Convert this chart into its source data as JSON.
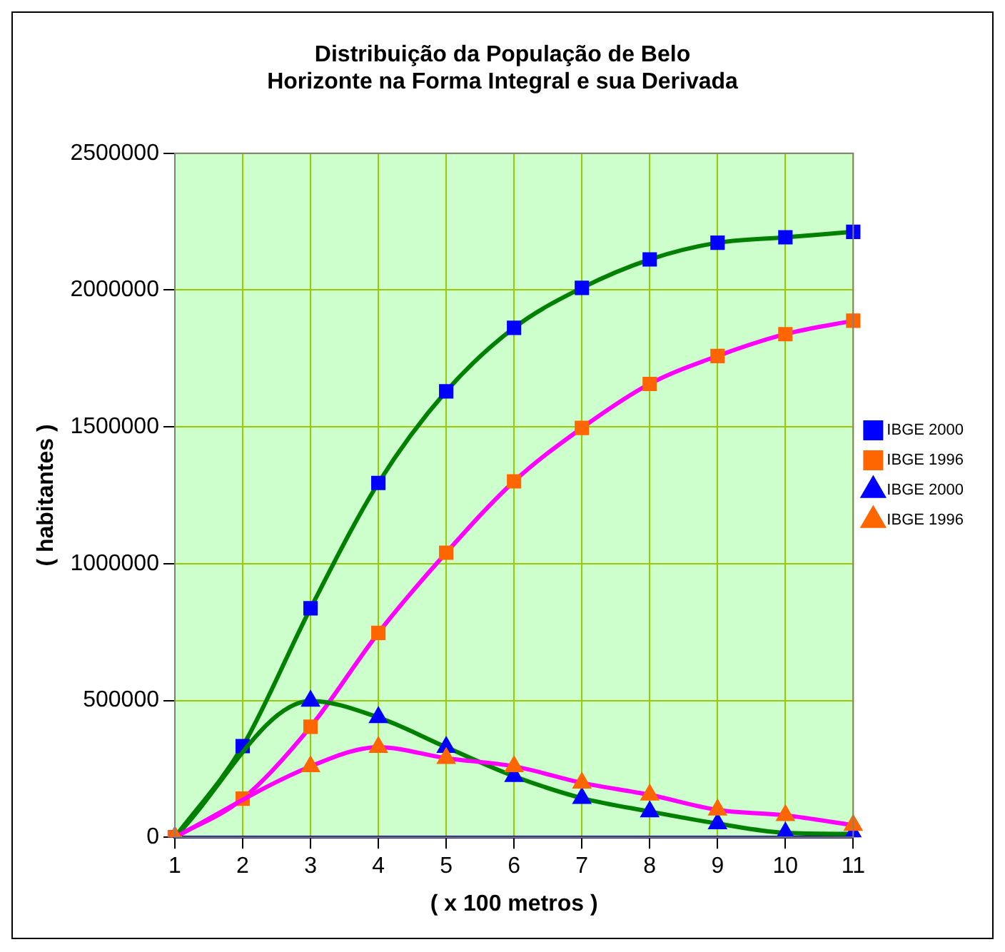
{
  "chart_data": {
    "type": "line",
    "title": "Distribuição da População de Belo Horizonte na Forma Integral e sua Derivada",
    "xlabel": "( x 100 metros )",
    "ylabel": "( habitantes )",
    "categories": [
      "1",
      "2",
      "3",
      "4",
      "5",
      "6",
      "7",
      "8",
      "9",
      "10",
      "11"
    ],
    "series": [
      {
        "name": "IBGE 2000",
        "color": "#008000",
        "marker": "square",
        "colors": [
          "#0000ff",
          "#0000ff",
          "#0000ff",
          "#0000ff",
          "#0000ff",
          "#0000ff",
          "#0000ff",
          "#0000ff",
          "#0000ff",
          "#0000ff",
          "#0000ff"
        ],
        "values": [
          0,
          333000,
          837000,
          1295000,
          1630000,
          1862000,
          2008000,
          2112000,
          2173000,
          2193000,
          2213000
        ]
      },
      {
        "name": "IBGE 1996",
        "color": "#ff00ff",
        "marker": "square",
        "colors": [
          "#ff6600",
          "#ff6600",
          "#ff6600",
          "#ff6600",
          "#ff6600",
          "#ff6600",
          "#ff6600",
          "#ff6600",
          "#ff6600",
          "#ff6600",
          "#ff6600"
        ],
        "values": [
          0,
          141000,
          404000,
          747000,
          1040000,
          1301000,
          1496000,
          1657000,
          1759000,
          1839000,
          1888000
        ]
      },
      {
        "name": "IBGE 2000",
        "color": "#008000",
        "marker": "triangle",
        "colors": [
          "#0000ff",
          "#0000ff",
          "#0000ff",
          "#0000ff",
          "#0000ff",
          "#0000ff",
          "#0000ff",
          "#0000ff",
          "#0000ff",
          "#0000ff",
          "#0000ff"
        ],
        "values": [
          0,
          null,
          498000,
          438000,
          329000,
          223000,
          143000,
          94000,
          50000,
          16000,
          12000
        ]
      },
      {
        "name": "IBGE 1996",
        "color": "#ff00ff",
        "marker": "triangle",
        "colors": [
          "#ff6600",
          "#ff6600",
          "#ff6600",
          "#ff6600",
          "#ff6600",
          "#ff6600",
          "#ff6600",
          "#ff6600",
          "#ff6600",
          "#ff6600",
          "#ff6600"
        ],
        "values": [
          0,
          null,
          259000,
          329000,
          289000,
          259000,
          199000,
          155000,
          100000,
          80000,
          44000
        ]
      }
    ],
    "ylim": [
      0,
      2500000
    ],
    "yticks": [
      0,
      500000,
      1000000,
      1500000,
      2000000,
      2500000
    ],
    "grid": true,
    "legend": "right"
  }
}
